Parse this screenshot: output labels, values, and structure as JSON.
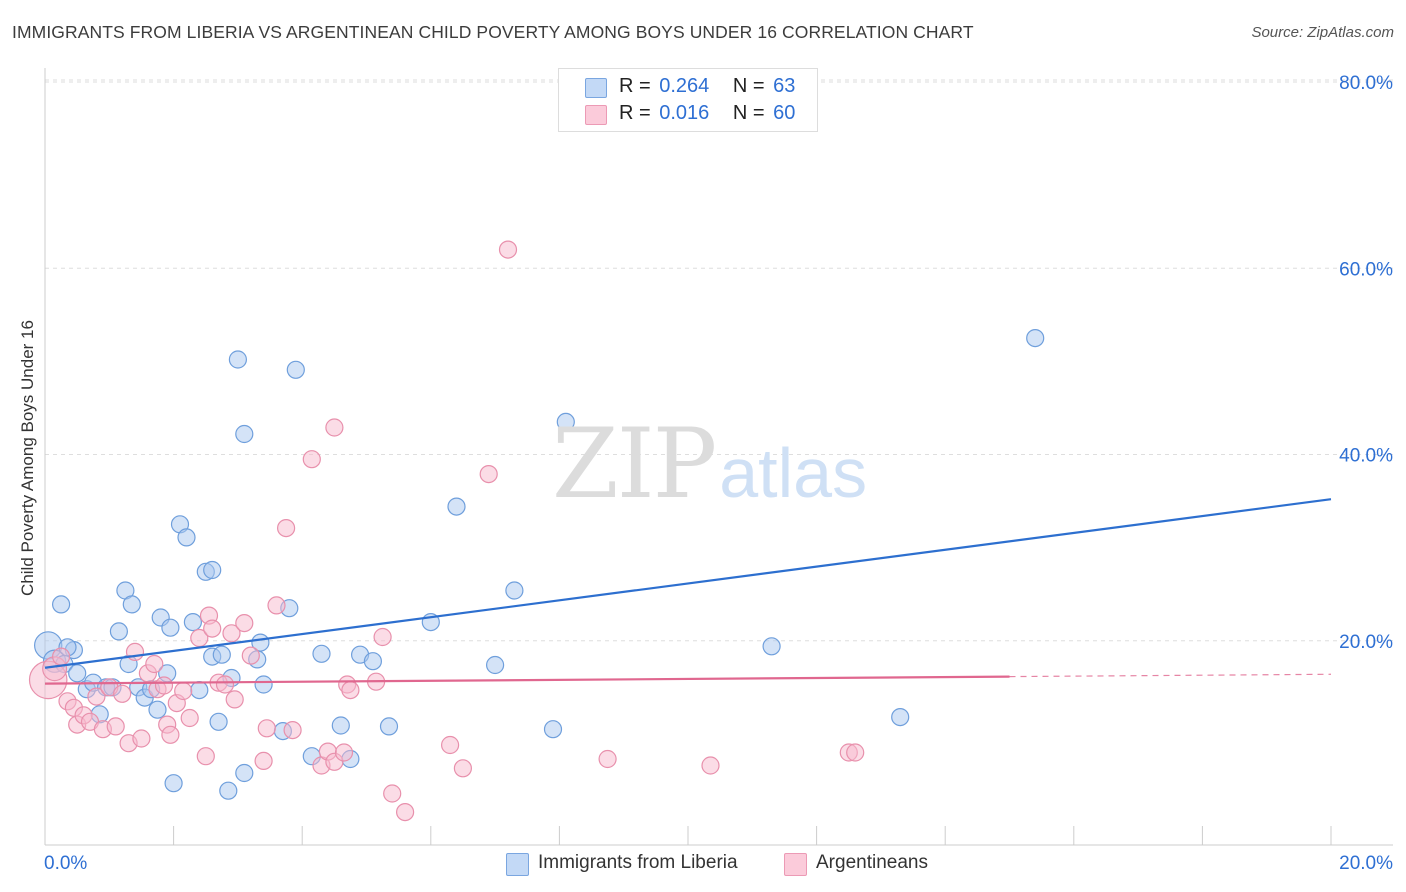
{
  "title": "IMMIGRANTS FROM LIBERIA VS ARGENTINEAN CHILD POVERTY AMONG BOYS UNDER 16 CORRELATION CHART",
  "source": "Source: ZipAtlas.com",
  "watermark": {
    "zip": "ZIP",
    "atlas": "atlas"
  },
  "legend": [
    {
      "r_label": "R =",
      "r_value": "0.264",
      "n_label": "N =",
      "n_value": "63"
    },
    {
      "r_label": "R =",
      "r_value": "0.016",
      "n_label": "N =",
      "n_value": "60"
    }
  ],
  "colors": {
    "blue_fill": "#a9c8f0",
    "blue_stroke": "#6f9fdc",
    "blue_line": "#2d6fcf",
    "pink_fill": "#f8b9cd",
    "pink_stroke": "#e890ac",
    "pink_line": "#e0678f",
    "axis_label": "#2e6fd3",
    "grid": "#dedede"
  },
  "chart_data": {
    "type": "scatter",
    "title": "IMMIGRANTS FROM LIBERIA VS ARGENTINEAN CHILD POVERTY AMONG BOYS UNDER 16 CORRELATION CHART",
    "xlabel": "",
    "ylabel": "Child Poverty Among Boys Under 16",
    "xlim": [
      0,
      20
    ],
    "ylim": [
      0,
      80
    ],
    "x_tick_labels": [
      "0.0%",
      "20.0%"
    ],
    "y_ticks": [
      20,
      40,
      60,
      80
    ],
    "y_tick_labels": [
      "20.0%",
      "40.0%",
      "60.0%",
      "80.0%"
    ],
    "grid": true,
    "series": [
      {
        "name": "Immigrants from Liberia",
        "color": "#a9c8f0",
        "trend": {
          "x": [
            0,
            20
          ],
          "y": [
            17.1,
            35.2
          ],
          "dashed_from": null
        },
        "points": [
          [
            0.05,
            19.5,
            1.6
          ],
          [
            0.15,
            17.8,
            1.3
          ],
          [
            0.25,
            23.9,
            1.0
          ],
          [
            0.3,
            17.5,
            1.0
          ],
          [
            0.45,
            19.0,
            1.0
          ],
          [
            0.5,
            16.5,
            1.0
          ],
          [
            0.65,
            14.8,
            1.0
          ],
          [
            0.75,
            15.5,
            1.0
          ],
          [
            0.85,
            12.1,
            1.0
          ],
          [
            0.95,
            15.0,
            1.0
          ],
          [
            1.05,
            15.0,
            1.0
          ],
          [
            1.15,
            21.0,
            1.0
          ],
          [
            1.25,
            25.4,
            1.0
          ],
          [
            1.3,
            17.5,
            1.0
          ],
          [
            1.35,
            23.9,
            1.0
          ],
          [
            1.45,
            15.0,
            1.0
          ],
          [
            1.55,
            13.9,
            1.0
          ],
          [
            1.65,
            14.8,
            1.0
          ],
          [
            1.75,
            12.6,
            1.0
          ],
          [
            1.8,
            22.5,
            1.0
          ],
          [
            1.9,
            16.5,
            1.0
          ],
          [
            1.95,
            21.4,
            1.0
          ],
          [
            2.0,
            4.7,
            1.0
          ],
          [
            2.1,
            32.5,
            1.0
          ],
          [
            2.2,
            31.1,
            1.0
          ],
          [
            2.3,
            22.0,
            1.0
          ],
          [
            2.4,
            14.7,
            1.0
          ],
          [
            2.5,
            27.4,
            1.0
          ],
          [
            2.6,
            27.6,
            1.0
          ],
          [
            2.6,
            18.3,
            1.0
          ],
          [
            2.7,
            11.3,
            1.0
          ],
          [
            2.75,
            18.5,
            1.0
          ],
          [
            2.85,
            3.9,
            1.0
          ],
          [
            2.9,
            16.0,
            1.0
          ],
          [
            3.0,
            50.2,
            1.0
          ],
          [
            3.1,
            42.2,
            1.0
          ],
          [
            3.1,
            5.8,
            1.0
          ],
          [
            3.3,
            18.0,
            1.0
          ],
          [
            3.35,
            19.8,
            1.0
          ],
          [
            3.4,
            15.3,
            1.0
          ],
          [
            3.7,
            10.3,
            1.0
          ],
          [
            3.8,
            23.5,
            1.0
          ],
          [
            3.9,
            49.1,
            1.0
          ],
          [
            4.15,
            7.6,
            1.0
          ],
          [
            4.3,
            18.6,
            1.0
          ],
          [
            4.6,
            10.9,
            1.0
          ],
          [
            4.75,
            7.3,
            1.0
          ],
          [
            4.9,
            18.5,
            1.0
          ],
          [
            5.1,
            17.8,
            1.0
          ],
          [
            5.35,
            10.8,
            1.0
          ],
          [
            6.0,
            22.0,
            1.0
          ],
          [
            6.4,
            34.4,
            1.0
          ],
          [
            7.0,
            17.4,
            1.0
          ],
          [
            7.3,
            25.4,
            1.0
          ],
          [
            7.9,
            10.5,
            1.0
          ],
          [
            8.1,
            43.5,
            1.0
          ],
          [
            11.3,
            19.4,
            1.0
          ],
          [
            13.3,
            11.8,
            1.0
          ],
          [
            15.4,
            52.5,
            1.0
          ],
          [
            0.35,
            19.3,
            1.0
          ],
          [
            1.05,
            20.5,
            0.0
          ],
          [
            2.0,
            17.0,
            0.0
          ],
          [
            1.8,
            16.0,
            0.0
          ]
        ]
      },
      {
        "name": "Argentineans",
        "color": "#f8b9cd",
        "trend": {
          "x": [
            0,
            20
          ],
          "y": [
            15.4,
            16.4
          ],
          "dashed_from": 15.0
        },
        "points": [
          [
            0.05,
            15.8,
            2.2
          ],
          [
            0.15,
            17.0,
            1.4
          ],
          [
            0.25,
            18.3,
            1.0
          ],
          [
            0.35,
            13.5,
            1.0
          ],
          [
            0.45,
            12.8,
            1.0
          ],
          [
            0.5,
            11.0,
            1.0
          ],
          [
            0.6,
            12.0,
            1.0
          ],
          [
            0.7,
            11.3,
            1.0
          ],
          [
            0.8,
            14.0,
            1.0
          ],
          [
            0.9,
            10.5,
            1.0
          ],
          [
            1.0,
            15.0,
            1.0
          ],
          [
            1.1,
            10.8,
            1.0
          ],
          [
            1.2,
            14.3,
            1.0
          ],
          [
            1.3,
            9.0,
            1.0
          ],
          [
            1.4,
            18.8,
            1.0
          ],
          [
            1.5,
            9.5,
            1.0
          ],
          [
            1.6,
            16.5,
            1.0
          ],
          [
            1.7,
            17.5,
            1.0
          ],
          [
            1.75,
            14.8,
            1.0
          ],
          [
            1.85,
            15.2,
            1.0
          ],
          [
            1.9,
            11.0,
            1.0
          ],
          [
            1.95,
            9.9,
            1.0
          ],
          [
            2.05,
            13.3,
            1.0
          ],
          [
            2.15,
            14.6,
            1.0
          ],
          [
            2.25,
            11.7,
            1.0
          ],
          [
            2.4,
            20.3,
            1.0
          ],
          [
            2.5,
            7.6,
            1.0
          ],
          [
            2.55,
            22.7,
            1.0
          ],
          [
            2.6,
            21.3,
            1.0
          ],
          [
            2.7,
            15.5,
            1.0
          ],
          [
            2.8,
            15.3,
            1.0
          ],
          [
            2.9,
            20.8,
            1.0
          ],
          [
            2.95,
            13.7,
            1.0
          ],
          [
            3.1,
            21.9,
            1.0
          ],
          [
            3.2,
            18.4,
            1.0
          ],
          [
            3.4,
            7.1,
            1.0
          ],
          [
            3.45,
            10.6,
            1.0
          ],
          [
            3.6,
            23.8,
            1.0
          ],
          [
            3.75,
            32.1,
            1.0
          ],
          [
            3.85,
            10.4,
            1.0
          ],
          [
            4.15,
            39.5,
            1.0
          ],
          [
            4.3,
            6.6,
            1.0
          ],
          [
            4.4,
            8.1,
            1.0
          ],
          [
            4.5,
            7.0,
            1.0
          ],
          [
            4.5,
            42.9,
            1.0
          ],
          [
            4.65,
            8.0,
            1.0
          ],
          [
            4.7,
            15.3,
            1.0
          ],
          [
            4.75,
            14.7,
            1.0
          ],
          [
            5.15,
            15.6,
            1.0
          ],
          [
            5.25,
            20.4,
            1.0
          ],
          [
            5.4,
            3.6,
            1.0
          ],
          [
            5.6,
            1.6,
            1.0
          ],
          [
            6.3,
            8.8,
            1.0
          ],
          [
            6.5,
            6.3,
            1.0
          ],
          [
            6.9,
            37.9,
            1.0
          ],
          [
            7.2,
            62.0,
            1.0
          ],
          [
            8.75,
            7.3,
            1.0
          ],
          [
            10.35,
            6.6,
            1.0
          ],
          [
            12.5,
            8.0,
            1.0
          ],
          [
            12.6,
            8.0,
            1.0
          ]
        ]
      }
    ]
  }
}
